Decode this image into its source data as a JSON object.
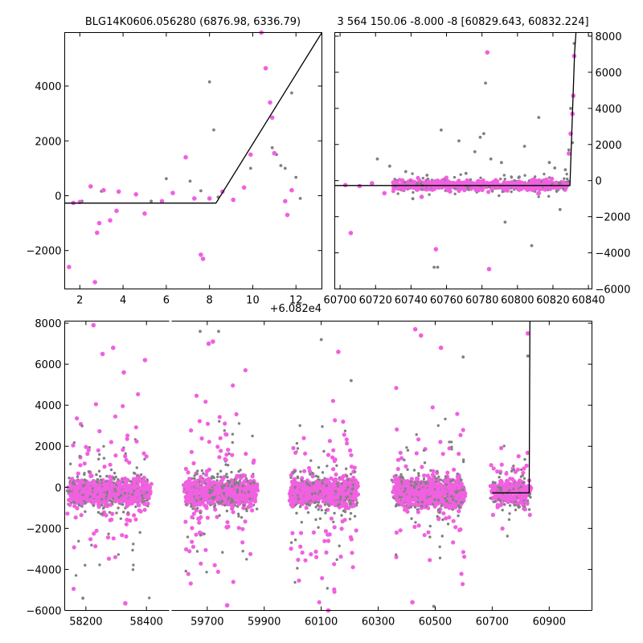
{
  "figure": {
    "background": "#ffffff"
  },
  "colors": {
    "points_gray": "#808080",
    "points_magenta": "#f060e0",
    "model_line": "#000000"
  },
  "chart_data": [
    {
      "id": "top-left",
      "type": "scatter",
      "title": "BLG14K0606.056280 (6876.98, 6336.79)",
      "xlabel": "",
      "ylabel": "",
      "xlim": [
        1.3,
        13.2
      ],
      "ylim": [
        -3400,
        5950
      ],
      "x_offset_label": "+6.082e4",
      "xticks": [
        2,
        4,
        6,
        8,
        10,
        12
      ],
      "xtick_labels": [
        "2",
        "4",
        "6",
        "8",
        "10",
        "12"
      ],
      "yticks": [
        -2000,
        0,
        2000,
        4000
      ],
      "ytick_labels": [
        "−2000",
        "0",
        "2000",
        "4000"
      ],
      "y_axis_side": "left",
      "grid": false,
      "series": [
        {
          "color": "#808080",
          "points": [
            [
              5.3,
              -200
            ],
            [
              6.0,
              620
            ],
            [
              7.1,
              530
            ],
            [
              7.6,
              180
            ],
            [
              8.0,
              4150
            ],
            [
              8.2,
              2400
            ],
            [
              8.4,
              -50
            ],
            [
              9.9,
              1000
            ],
            [
              10.4,
              5950
            ],
            [
              10.9,
              1750
            ],
            [
              11.1,
              1500
            ],
            [
              11.3,
              1100
            ],
            [
              11.5,
              1000
            ],
            [
              11.8,
              3750
            ],
            [
              12.0,
              670
            ],
            [
              12.2,
              -100
            ],
            [
              3.0,
              160
            ],
            [
              2.1,
              -200
            ]
          ]
        },
        {
          "color": "#f060e0",
          "points": [
            [
              1.5,
              -2600
            ],
            [
              1.7,
              -260
            ],
            [
              2.0,
              -230
            ],
            [
              2.5,
              340
            ],
            [
              2.7,
              -3150
            ],
            [
              2.8,
              -1350
            ],
            [
              2.9,
              -1000
            ],
            [
              3.1,
              200
            ],
            [
              3.4,
              -900
            ],
            [
              3.7,
              -550
            ],
            [
              3.8,
              150
            ],
            [
              4.6,
              50
            ],
            [
              5.0,
              -650
            ],
            [
              5.8,
              -200
            ],
            [
              6.3,
              100
            ],
            [
              6.9,
              1400
            ],
            [
              7.3,
              -100
            ],
            [
              7.6,
              -2150
            ],
            [
              7.7,
              -2300
            ],
            [
              8.0,
              -100
            ],
            [
              8.6,
              150
            ],
            [
              9.1,
              -150
            ],
            [
              9.6,
              300
            ],
            [
              9.9,
              1500
            ],
            [
              10.4,
              6000
            ],
            [
              10.6,
              4650
            ],
            [
              10.8,
              3400
            ],
            [
              10.9,
              2850
            ],
            [
              11.0,
              1550
            ],
            [
              11.5,
              -200
            ],
            [
              11.6,
              -700
            ],
            [
              11.8,
              200
            ]
          ]
        }
      ],
      "model_line": [
        [
          1.3,
          -270
        ],
        [
          8.3,
          -270
        ],
        [
          13.2,
          5950
        ]
      ]
    },
    {
      "id": "top-right",
      "type": "scatter",
      "title": "3 564 150.06 -8.000 -8 [60829.643, 60832.224]",
      "xlabel": "",
      "ylabel": "",
      "xlim": [
        60697,
        60842
      ],
      "ylim": [
        -6000,
        8200
      ],
      "xticks": [
        60700,
        60720,
        60740,
        60760,
        60780,
        60800,
        60820,
        60840
      ],
      "xtick_labels": [
        "60700",
        "60720",
        "60740",
        "60760",
        "60780",
        "60800",
        "60820",
        "60840"
      ],
      "yticks": [
        -6000,
        -4000,
        -2000,
        0,
        2000,
        4000,
        6000,
        8000
      ],
      "ytick_labels": [
        "−6000",
        "−4000",
        "−2000",
        "0",
        "2000",
        "4000",
        "6000",
        "8000"
      ],
      "y_axis_side": "right",
      "grid": false,
      "series": [
        {
          "color": "#808080",
          "points": [
            [
              60721,
              1200
            ],
            [
              60728,
              800
            ],
            [
              60731,
              -300
            ],
            [
              60737,
              500
            ],
            [
              60741,
              -1000
            ],
            [
              60749,
              300
            ],
            [
              60753,
              -4800
            ],
            [
              60755,
              -4800
            ],
            [
              60757,
              2800
            ],
            [
              60767,
              2200
            ],
            [
              60771,
              400
            ],
            [
              60776,
              1600
            ],
            [
              60779,
              2400
            ],
            [
              60781,
              2600
            ],
            [
              60782,
              5400
            ],
            [
              60785,
              1200
            ],
            [
              60791,
              1000
            ],
            [
              60793,
              -2300
            ],
            [
              60801,
              200
            ],
            [
              60804,
              1900
            ],
            [
              60808,
              -3600
            ],
            [
              60812,
              3500
            ],
            [
              60818,
              1000
            ],
            [
              60821,
              700
            ],
            [
              60824,
              -1600
            ],
            [
              60827,
              600
            ],
            [
              60829,
              1700
            ],
            [
              60831,
              2100
            ],
            [
              60832,
              7600
            ],
            [
              60830,
              4000
            ]
          ]
        },
        {
          "color": "#f060e0",
          "points": [
            [
              60703,
              -250
            ],
            [
              60706,
              -2900
            ],
            [
              60711,
              -300
            ],
            [
              60718,
              -150
            ],
            [
              60725,
              -700
            ],
            [
              60730,
              -100
            ],
            [
              60735,
              -400
            ],
            [
              60741,
              -200
            ],
            [
              60746,
              -900
            ],
            [
              60752,
              -150
            ],
            [
              60754,
              -3800
            ],
            [
              60758,
              -100
            ],
            [
              60762,
              -600
            ],
            [
              60767,
              -300
            ],
            [
              60773,
              -200
            ],
            [
              60778,
              -500
            ],
            [
              60783,
              7100
            ],
            [
              60784,
              -4900
            ],
            [
              60787,
              -200
            ],
            [
              60792,
              -400
            ],
            [
              60798,
              -150
            ],
            [
              60803,
              -300
            ],
            [
              60808,
              -250
            ],
            [
              60812,
              -700
            ],
            [
              60817,
              -200
            ],
            [
              60822,
              -400
            ],
            [
              60826,
              -100
            ],
            [
              60829,
              1500
            ],
            [
              60830,
              2600
            ],
            [
              60831,
              3700
            ],
            [
              60831.5,
              4700
            ],
            [
              60832,
              6900
            ]
          ]
        }
      ],
      "model_line": [
        [
          60697,
          -270
        ],
        [
          60829.6,
          -270
        ],
        [
          60832.2,
          7100
        ],
        [
          60833,
          8200
        ]
      ]
    },
    {
      "id": "bottom",
      "type": "scatter",
      "title": "",
      "xlabel": "",
      "ylabel": "",
      "broken_x_axis": true,
      "xlim_segment_1": [
        58130,
        58475
      ],
      "xlim_segment_2": [
        59575,
        61050
      ],
      "ylim": [
        -6000,
        8100
      ],
      "xticks_segment_1": [
        58200,
        58400
      ],
      "xtick_labels_segment_1": [
        "58200",
        "58400"
      ],
      "xticks_segment_2": [
        59700,
        59900,
        60100,
        60300,
        60500,
        60700,
        60900
      ],
      "xtick_labels_segment_2": [
        "59700",
        "59900",
        "60100",
        "60300",
        "60500",
        "60700",
        "60900"
      ],
      "yticks": [
        -6000,
        -4000,
        -2000,
        0,
        2000,
        4000,
        6000,
        8000
      ],
      "ytick_labels": [
        "−6000",
        "−4000",
        "−2000",
        "0",
        "2000",
        "4000",
        "6000",
        "8000"
      ],
      "y_axis_side": "left",
      "grid": false,
      "seasons": [
        {
          "x_range": [
            58145,
            58410
          ],
          "spread": 4200
        },
        {
          "x_range": [
            59625,
            59870
          ],
          "spread": 3600
        },
        {
          "x_range": [
            59995,
            60225
          ],
          "spread": 3600
        },
        {
          "x_range": [
            60355,
            60600
          ],
          "spread": 3600
        },
        {
          "x_range": [
            60700,
            60832
          ],
          "spread": 2400
        }
      ],
      "outliers_magenta": [
        [
          58225,
          7900
        ],
        [
          58255,
          6500
        ],
        [
          58290,
          6800
        ],
        [
          58325,
          5600
        ],
        [
          58395,
          6200
        ],
        [
          59705,
          7000
        ],
        [
          59720,
          7100
        ],
        [
          60160,
          6600
        ],
        [
          60430,
          7700
        ],
        [
          60450,
          7400
        ],
        [
          60520,
          6800
        ],
        [
          60825,
          7500
        ],
        [
          58330,
          -5650
        ],
        [
          59770,
          -5750
        ],
        [
          60125,
          -6000
        ],
        [
          60420,
          -5600
        ]
      ],
      "outliers_gray": [
        [
          59675,
          7600
        ],
        [
          59740,
          7600
        ],
        [
          60100,
          7200
        ],
        [
          60205,
          5200
        ],
        [
          60598,
          6350
        ],
        [
          60825,
          6400
        ],
        [
          58190,
          -5400
        ],
        [
          60495,
          -5800
        ]
      ],
      "model_line": [
        [
          60700,
          -270
        ],
        [
          60829.6,
          -270
        ],
        [
          60832.2,
          8100
        ]
      ]
    }
  ]
}
